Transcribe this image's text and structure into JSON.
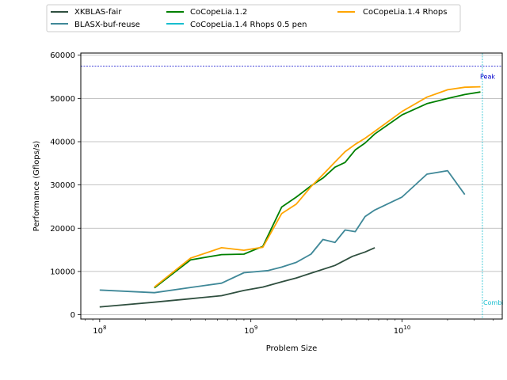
{
  "chart_data": {
    "type": "line",
    "xlabel": "Problem Size",
    "ylabel": "Performance (Gflops/s)",
    "x_scale": "log",
    "xlim": [
      75000000,
      46000000000
    ],
    "ylim": [
      -1000,
      60500
    ],
    "y_ticks": [
      0,
      10000,
      20000,
      30000,
      40000,
      50000,
      60000
    ],
    "x_ticks": [
      {
        "value": 100000000,
        "base": "10",
        "exp": "8"
      },
      {
        "value": 1000000000,
        "base": "10",
        "exp": "9"
      },
      {
        "value": 10000000000,
        "base": "10",
        "exp": "10"
      }
    ],
    "grid": "horizontal",
    "legend_position": "top, above plot",
    "series": [
      {
        "name": "XKBLAS-fair",
        "color": "#2f4f3f",
        "x": [
          100000000,
          230000000,
          400000000,
          640000000,
          900000000,
          1200000000,
          1600000000,
          2000000000,
          2600000000,
          3600000000,
          4700000000,
          5700000000,
          6600000000
        ],
        "y": [
          1800,
          2900,
          3700,
          4400,
          5600,
          6400,
          7600,
          8500,
          9800,
          11400,
          13500,
          14500,
          15500
        ]
      },
      {
        "name": "BLASX-buf-reuse",
        "color": "#3f8898",
        "x": [
          100000000,
          230000000,
          400000000,
          640000000,
          900000000,
          1300000000,
          1600000000,
          2000000000,
          2500000000,
          3000000000,
          3600000000,
          4200000000,
          4900000000,
          5700000000,
          6600000000,
          10000000000,
          14600000000,
          20000000000,
          26000000000
        ],
        "y": [
          5700,
          5100,
          6300,
          7300,
          9700,
          10200,
          11000,
          12100,
          14000,
          17400,
          16700,
          19600,
          19200,
          22700,
          24200,
          27200,
          32500,
          33300,
          27800
        ]
      },
      {
        "name": "CoCopeLia.1.2",
        "color": "#008000",
        "x": [
          230000000,
          400000000,
          640000000,
          900000000,
          1200000000,
          1600000000,
          2000000000,
          2500000000,
          3000000000,
          3600000000,
          4200000000,
          4900000000,
          5700000000,
          6600000000,
          10000000000,
          14600000000,
          20000000000,
          26000000000,
          33000000000
        ],
        "y": [
          6200,
          12700,
          13900,
          14000,
          15800,
          24900,
          27200,
          29800,
          31600,
          34100,
          35200,
          38100,
          39700,
          41800,
          46200,
          48800,
          50000,
          50900,
          51500
        ]
      },
      {
        "name": "CoCopeLia.1.4 Rhops 0.5 pen",
        "color": "#17becf",
        "x": [],
        "y": []
      },
      {
        "name": "CoCopeLia.1.4 Rhops",
        "color": "#ffa500",
        "x": [
          230000000,
          400000000,
          640000000,
          900000000,
          1200000000,
          1600000000,
          2000000000,
          2500000000,
          3000000000,
          3600000000,
          4200000000,
          4900000000,
          5700000000,
          6600000000,
          10000000000,
          14600000000,
          20000000000,
          26000000000,
          33000000000
        ],
        "y": [
          6400,
          13100,
          15500,
          14900,
          15600,
          23400,
          25600,
          29600,
          32400,
          35300,
          37700,
          39400,
          40800,
          42400,
          47000,
          50300,
          52000,
          52600,
          52700
        ]
      }
    ],
    "reference_lines": [
      {
        "kind": "horizontal",
        "value": 57500,
        "color": "#0000cc",
        "label": "Peak"
      },
      {
        "kind": "vertical",
        "value": 34000000000,
        "color": "#17becf",
        "label": "Combi"
      }
    ]
  }
}
